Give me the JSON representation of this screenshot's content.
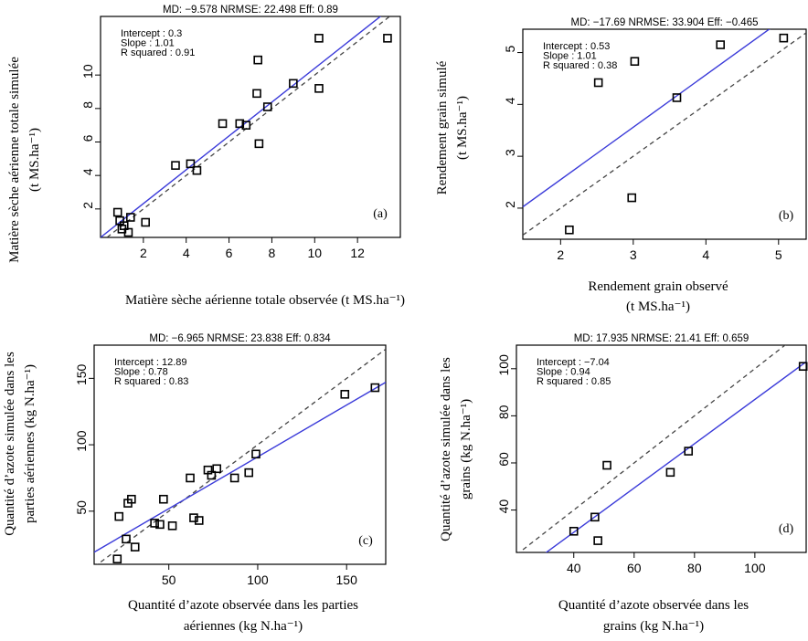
{
  "chart_data": [
    {
      "id": "a",
      "type": "scatter",
      "tag": "(a)",
      "header": "MD: −9.578   NRMSE: 22.498   Eff: 0.89",
      "stats": [
        "Intercept : 0.3",
        "Slope : 1.01",
        "R squared : 0.91"
      ],
      "xlabel": [
        "Matière sèche aérienne totale observée (t MS.ha⁻¹)"
      ],
      "ylabel": [
        "Matière sèche aérienne totale simulée",
        "(t MS.ha⁻¹)"
      ],
      "xlim": [
        0,
        14
      ],
      "ylim": [
        0.3,
        13.5
      ],
      "xticks": [
        2,
        4,
        6,
        8,
        10,
        12
      ],
      "yticks": [
        2,
        4,
        6,
        8,
        10
      ],
      "intercept": 0.3,
      "slope": 1.01,
      "points": [
        [
          0.8,
          1.8
        ],
        [
          0.9,
          1.3
        ],
        [
          1.0,
          0.8
        ],
        [
          1.1,
          1.0
        ],
        [
          1.3,
          0.6
        ],
        [
          1.4,
          1.5
        ],
        [
          2.1,
          1.2
        ],
        [
          3.5,
          4.6
        ],
        [
          4.2,
          4.7
        ],
        [
          4.5,
          4.3
        ],
        [
          5.7,
          7.1
        ],
        [
          6.5,
          7.1
        ],
        [
          6.8,
          7.0
        ],
        [
          7.3,
          8.9
        ],
        [
          7.35,
          10.9
        ],
        [
          7.4,
          5.9
        ],
        [
          7.8,
          8.1
        ],
        [
          9.0,
          9.5
        ],
        [
          10.2,
          12.2
        ],
        [
          10.2,
          9.2
        ],
        [
          13.4,
          12.2
        ]
      ]
    },
    {
      "id": "b",
      "type": "scatter",
      "tag": "(b)",
      "header": "MD: −17.69   NRMSE: 33.904   Eff: −0.465",
      "stats": [
        "Intercept : 0.53",
        "Slope : 1.01",
        "R squared : 0.38"
      ],
      "xlabel": [
        "Rendement grain observé",
        "(t MS.ha⁻¹)"
      ],
      "ylabel": [
        "Rendement grain simulé",
        "(t MS.ha⁻¹)"
      ],
      "xlim": [
        1.48,
        5.38
      ],
      "ylim": [
        1.4,
        5.45
      ],
      "xticks": [
        2,
        3,
        4,
        5
      ],
      "yticks": [
        2,
        3,
        4,
        5
      ],
      "intercept": 0.53,
      "slope": 1.01,
      "points": [
        [
          2.12,
          1.58
        ],
        [
          2.52,
          4.42
        ],
        [
          2.98,
          2.2
        ],
        [
          3.02,
          4.83
        ],
        [
          3.6,
          4.13
        ],
        [
          4.2,
          5.15
        ],
        [
          5.07,
          5.28
        ]
      ]
    },
    {
      "id": "c",
      "type": "scatter",
      "tag": "(c)",
      "header": "MD: −6.965   NRMSE: 23.838   Eff: 0.834",
      "stats": [
        "Intercept : 12.89",
        "Slope : 0.78",
        "R squared : 0.83"
      ],
      "xlabel": [
        "Quantité d’azote observée dans les parties",
        "aériennes (kg N.ha⁻¹)"
      ],
      "ylabel": [
        "Quantité d’azote simulée dans les",
        "parties aériennes (kg N.ha⁻¹)"
      ],
      "xlim": [
        8,
        172
      ],
      "ylim": [
        10,
        175
      ],
      "xticks": [
        50,
        100,
        150
      ],
      "yticks": [
        50,
        100,
        150
      ],
      "intercept": 12.89,
      "slope": 0.78,
      "points": [
        [
          21,
          14
        ],
        [
          22,
          46
        ],
        [
          26,
          29
        ],
        [
          27,
          56
        ],
        [
          29,
          59
        ],
        [
          31,
          23
        ],
        [
          42,
          41
        ],
        [
          45,
          40
        ],
        [
          47,
          59
        ],
        [
          52,
          39
        ],
        [
          62,
          75
        ],
        [
          64,
          45
        ],
        [
          67,
          43
        ],
        [
          72,
          81
        ],
        [
          74,
          77
        ],
        [
          77,
          82
        ],
        [
          87,
          75
        ],
        [
          95,
          79
        ],
        [
          99,
          93
        ],
        [
          149,
          138
        ],
        [
          166,
          143
        ]
      ]
    },
    {
      "id": "d",
      "type": "scatter",
      "tag": "(d)",
      "header": "MD: 17.935   NRMSE: 21.41   Eff: 0.659",
      "stats": [
        "Intercept : −7.04",
        "Slope : 0.94",
        "R squared : 0.85"
      ],
      "xlabel": [
        "Quantité d’azote observée dans les",
        "grains (kg N.ha⁻¹)"
      ],
      "ylabel": [
        "Quantité d’azote simulée dans les",
        "grains (kg N.ha⁻¹)"
      ],
      "xlim": [
        21,
        117
      ],
      "ylim": [
        22,
        110
      ],
      "xticks": [
        40,
        60,
        80,
        100
      ],
      "yticks": [
        40,
        60,
        80,
        100
      ],
      "intercept": -7.04,
      "slope": 0.94,
      "points": [
        [
          40,
          31
        ],
        [
          47,
          37
        ],
        [
          48,
          27
        ],
        [
          51,
          59
        ],
        [
          72,
          56
        ],
        [
          78,
          65
        ],
        [
          116,
          101
        ]
      ]
    }
  ]
}
